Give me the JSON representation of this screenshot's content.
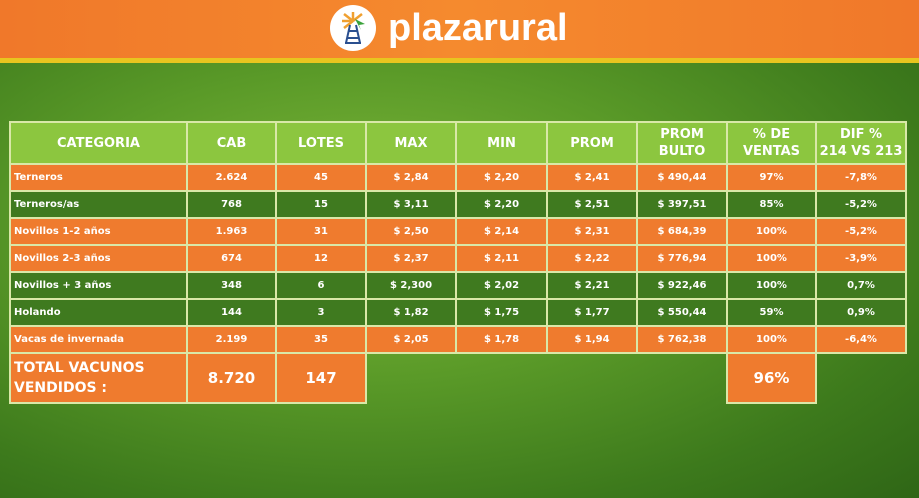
{
  "brand": {
    "name": "plazarural",
    "logo_icon": "windmill-icon",
    "colors": {
      "orange": "#ef7b2e",
      "dark_green": "#3f7a1f",
      "header_green": "#8cc63f"
    }
  },
  "table": {
    "headers": [
      "CATEGORIA",
      "CAB",
      "LOTES",
      "MAX",
      "MIN",
      "PROM",
      "PROM BULTO",
      "% DE VENTAS",
      "DIF % 214 VS 213"
    ],
    "rows": [
      {
        "cells": [
          "Terneros",
          "2.624",
          "45",
          "$ 2,84",
          "$ 2,20",
          "$ 2,41",
          "$ 490,44",
          "97%",
          "-7,8%"
        ],
        "color": "orange"
      },
      {
        "cells": [
          "Terneros/as",
          "768",
          "15",
          "$ 3,11",
          "$ 2,20",
          "$ 2,51",
          "$ 397,51",
          "85%",
          "-5,2%"
        ],
        "color": "green"
      },
      {
        "cells": [
          "Novillos 1-2 años",
          "1.963",
          "31",
          "$ 2,50",
          "$ 2,14",
          "$ 2,31",
          "$ 684,39",
          "100%",
          "-5,2%"
        ],
        "color": "orange"
      },
      {
        "cells": [
          "Novillos 2-3 años",
          "674",
          "12",
          "$ 2,37",
          "$ 2,11",
          "$ 2,22",
          "$ 776,94",
          "100%",
          "-3,9%"
        ],
        "color": "orange"
      },
      {
        "cells": [
          "Novillos + 3 años",
          "348",
          "6",
          "$ 2,300",
          "$ 2,02",
          "$ 2,21",
          "$ 922,46",
          "100%",
          "0,7%"
        ],
        "color": "green"
      },
      {
        "cells": [
          "Holando",
          "144",
          "3",
          "$ 1,82",
          "$ 1,75",
          "$ 1,77",
          "$ 550,44",
          "59%",
          "0,9%"
        ],
        "color": "green"
      },
      {
        "cells": [
          "Vacas de invernada",
          "2.199",
          "35",
          "$ 2,05",
          "$ 1,78",
          "$ 1,94",
          "$ 762,38",
          "100%",
          "-6,4%"
        ],
        "color": "orange"
      }
    ],
    "total": {
      "label": "TOTAL VACUNOS VENDIDOS :",
      "cab": "8.720",
      "lotes": "147",
      "pct_ventas": "96%"
    }
  }
}
